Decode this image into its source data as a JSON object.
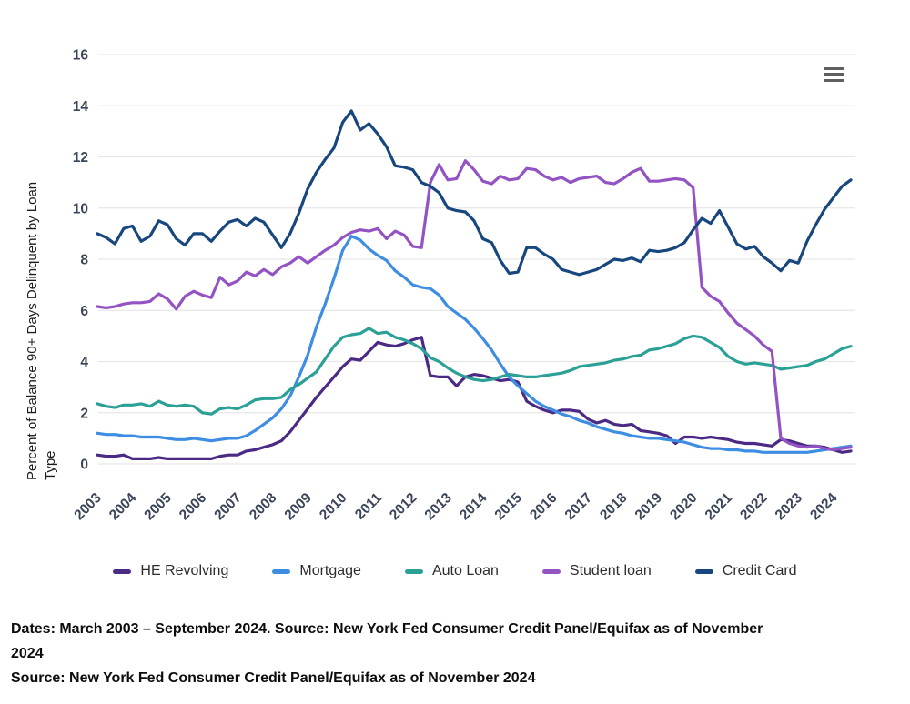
{
  "axis": {
    "y_title_line1": "Percent of Balance 90+ Days Delinquent by Loan",
    "y_title_line2": "Type"
  },
  "icons": {
    "menu": "hamburger"
  },
  "footer": {
    "line1a": "Dates: March 2003 – September 2024. Source: New York Fed Consumer Credit Panel/Equifax as of November",
    "line1b": "2024",
    "line2": "Source: New York Fed Consumer Credit Panel/Equifax as of November 2024"
  },
  "chart_data": {
    "type": "line",
    "title": "",
    "ylabel": "Percent of Balance 90+ Days Delinquent by Loan Type",
    "xlabel": "",
    "ylim": [
      0,
      16
    ],
    "y_ticks": [
      0,
      2,
      4,
      6,
      8,
      10,
      12,
      14,
      16
    ],
    "x_tick_years": [
      2003,
      2004,
      2005,
      2006,
      2007,
      2008,
      2009,
      2010,
      2011,
      2012,
      2013,
      2014,
      2015,
      2016,
      2017,
      2018,
      2019,
      2020,
      2021,
      2022,
      2023,
      2024
    ],
    "x_start": "2003-Q1",
    "x_end": "2024-Q3",
    "frequency": "quarterly",
    "grid": "horizontal",
    "legend_position": "bottom",
    "colors": {
      "axis_label": "#3b4559",
      "grid": "#e7e7e7"
    },
    "series": [
      {
        "name": "HE Revolving",
        "color": "#4b2a85",
        "values": [
          0.35,
          0.3,
          0.3,
          0.35,
          0.2,
          0.2,
          0.2,
          0.25,
          0.2,
          0.2,
          0.2,
          0.2,
          0.2,
          0.2,
          0.3,
          0.35,
          0.35,
          0.5,
          0.55,
          0.65,
          0.75,
          0.9,
          1.25,
          1.7,
          2.15,
          2.6,
          3.0,
          3.4,
          3.8,
          4.1,
          4.05,
          4.4,
          4.75,
          4.65,
          4.6,
          4.7,
          4.85,
          4.95,
          3.45,
          3.4,
          3.4,
          3.05,
          3.4,
          3.5,
          3.45,
          3.35,
          3.25,
          3.3,
          3.2,
          2.45,
          2.25,
          2.1,
          2.0,
          2.1,
          2.1,
          2.05,
          1.75,
          1.6,
          1.7,
          1.55,
          1.5,
          1.55,
          1.3,
          1.25,
          1.2,
          1.1,
          0.8,
          1.05,
          1.05,
          1.0,
          1.05,
          1.0,
          0.95,
          0.85,
          0.8,
          0.8,
          0.75,
          0.7,
          0.95,
          0.9,
          0.8,
          0.7,
          0.7,
          0.65,
          0.55,
          0.45,
          0.5
        ]
      },
      {
        "name": "Mortgage",
        "color": "#3d8de2",
        "values": [
          1.2,
          1.15,
          1.15,
          1.1,
          1.1,
          1.05,
          1.05,
          1.05,
          1.0,
          0.95,
          0.95,
          1.0,
          0.95,
          0.9,
          0.95,
          1.0,
          1.0,
          1.1,
          1.3,
          1.55,
          1.8,
          2.15,
          2.65,
          3.4,
          4.25,
          5.35,
          6.25,
          7.25,
          8.35,
          8.9,
          8.75,
          8.4,
          8.15,
          7.95,
          7.55,
          7.3,
          7.0,
          6.9,
          6.85,
          6.6,
          6.15,
          5.9,
          5.65,
          5.3,
          4.9,
          4.45,
          3.9,
          3.4,
          3.05,
          2.75,
          2.45,
          2.25,
          2.1,
          1.95,
          1.85,
          1.7,
          1.6,
          1.45,
          1.35,
          1.25,
          1.2,
          1.1,
          1.05,
          1.0,
          1.0,
          0.95,
          0.9,
          0.85,
          0.75,
          0.65,
          0.6,
          0.6,
          0.55,
          0.55,
          0.5,
          0.5,
          0.45,
          0.45,
          0.45,
          0.45,
          0.45,
          0.45,
          0.5,
          0.55,
          0.6,
          0.65,
          0.7
        ]
      },
      {
        "name": "Auto Loan",
        "color": "#2aa096",
        "values": [
          2.35,
          2.25,
          2.2,
          2.3,
          2.3,
          2.35,
          2.25,
          2.45,
          2.3,
          2.25,
          2.3,
          2.25,
          2.0,
          1.95,
          2.15,
          2.2,
          2.15,
          2.3,
          2.5,
          2.55,
          2.55,
          2.6,
          2.9,
          3.1,
          3.35,
          3.6,
          4.1,
          4.6,
          4.95,
          5.05,
          5.1,
          5.3,
          5.1,
          5.15,
          4.95,
          4.85,
          4.7,
          4.5,
          4.15,
          4.0,
          3.75,
          3.55,
          3.4,
          3.3,
          3.25,
          3.3,
          3.4,
          3.5,
          3.45,
          3.4,
          3.4,
          3.45,
          3.5,
          3.55,
          3.65,
          3.8,
          3.85,
          3.9,
          3.95,
          4.05,
          4.1,
          4.2,
          4.25,
          4.45,
          4.5,
          4.6,
          4.7,
          4.9,
          5.0,
          4.95,
          4.75,
          4.55,
          4.2,
          4.0,
          3.9,
          3.95,
          3.9,
          3.85,
          3.7,
          3.75,
          3.8,
          3.85,
          4.0,
          4.1,
          4.3,
          4.5,
          4.6
        ]
      },
      {
        "name": "Student loan",
        "color": "#9353c3",
        "values": [
          6.15,
          6.1,
          6.15,
          6.25,
          6.3,
          6.3,
          6.35,
          6.65,
          6.45,
          6.05,
          6.55,
          6.75,
          6.6,
          6.5,
          7.3,
          7.0,
          7.15,
          7.5,
          7.35,
          7.6,
          7.4,
          7.7,
          7.85,
          8.1,
          7.85,
          8.1,
          8.35,
          8.55,
          8.85,
          9.05,
          9.15,
          9.1,
          9.2,
          8.8,
          9.1,
          8.95,
          8.5,
          8.45,
          11.0,
          11.7,
          11.1,
          11.15,
          11.85,
          11.5,
          11.05,
          10.95,
          11.25,
          11.1,
          11.15,
          11.55,
          11.5,
          11.25,
          11.1,
          11.2,
          11.0,
          11.15,
          11.2,
          11.25,
          11.0,
          10.95,
          11.15,
          11.4,
          11.55,
          11.05,
          11.05,
          11.1,
          11.15,
          11.1,
          10.8,
          6.9,
          6.55,
          6.35,
          5.9,
          5.5,
          5.25,
          5.0,
          4.65,
          4.4,
          1.0,
          0.8,
          0.7,
          0.65,
          0.7,
          0.6,
          0.55,
          0.6,
          0.65
        ]
      },
      {
        "name": "Credit Card",
        "color": "#17477e",
        "values": [
          9.0,
          8.85,
          8.6,
          9.2,
          9.3,
          8.7,
          8.9,
          9.5,
          9.35,
          8.8,
          8.55,
          9.0,
          9.0,
          8.7,
          9.1,
          9.45,
          9.55,
          9.3,
          9.6,
          9.45,
          8.95,
          8.45,
          9.0,
          9.8,
          10.75,
          11.4,
          11.9,
          12.35,
          13.35,
          13.8,
          13.05,
          13.3,
          12.9,
          12.4,
          11.65,
          11.6,
          11.5,
          11.0,
          10.85,
          10.6,
          10.0,
          9.9,
          9.85,
          9.5,
          8.8,
          8.65,
          7.95,
          7.45,
          7.5,
          8.45,
          8.45,
          8.2,
          8.0,
          7.6,
          7.5,
          7.4,
          7.5,
          7.6,
          7.8,
          8.0,
          7.95,
          8.05,
          7.9,
          8.35,
          8.3,
          8.35,
          8.45,
          8.65,
          9.15,
          9.6,
          9.4,
          9.9,
          9.25,
          8.6,
          8.4,
          8.5,
          8.1,
          7.85,
          7.55,
          7.95,
          7.85,
          8.7,
          9.35,
          9.95,
          10.4,
          10.85,
          11.1
        ]
      }
    ]
  }
}
